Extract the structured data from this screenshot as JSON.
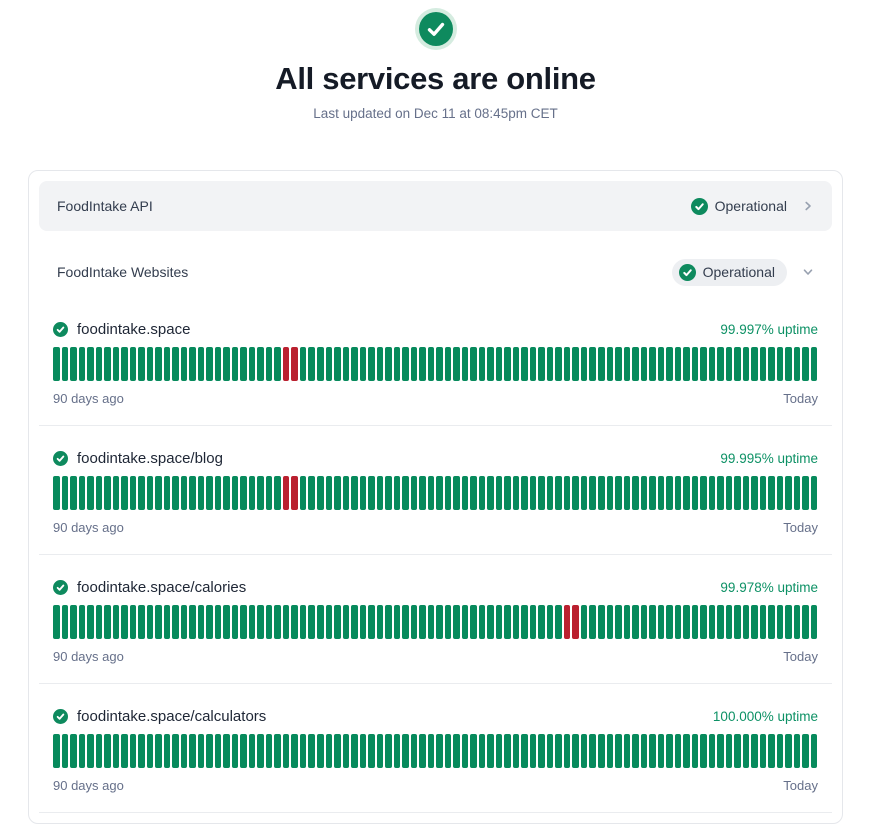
{
  "hero": {
    "status_icon": "check-circle-icon",
    "title": "All services are online",
    "subtitle": "Last updated on Dec 11 at 08:45pm CET"
  },
  "colors": {
    "brand_green": "#0E8A5E",
    "up_green": "#078A5C",
    "down_red": "#BA202F",
    "uptime_text_green": "#0D9165",
    "halo_green": "#D5ECE0"
  },
  "groups": [
    {
      "name": "FoodIntake API",
      "status_label": "Operational",
      "chevron": "right"
    },
    {
      "name": "FoodIntake Websites",
      "status_label": "Operational",
      "chevron": "down"
    }
  ],
  "monitors": [
    {
      "name": "foodintake.space",
      "uptime": "99.997% uptime",
      "range_start": "90 days ago",
      "range_end": "Today",
      "total_days": 90,
      "down_day_indices": [
        27,
        28
      ]
    },
    {
      "name": "foodintake.space/blog",
      "uptime": "99.995% uptime",
      "range_start": "90 days ago",
      "range_end": "Today",
      "total_days": 90,
      "down_day_indices": [
        27,
        28
      ]
    },
    {
      "name": "foodintake.space/calories",
      "uptime": "99.978% uptime",
      "range_start": "90 days ago",
      "range_end": "Today",
      "total_days": 90,
      "down_day_indices": [
        60,
        61
      ]
    },
    {
      "name": "foodintake.space/calculators",
      "uptime": "100.000% uptime",
      "range_start": "90 days ago",
      "range_end": "Today",
      "total_days": 90,
      "down_day_indices": []
    }
  ]
}
